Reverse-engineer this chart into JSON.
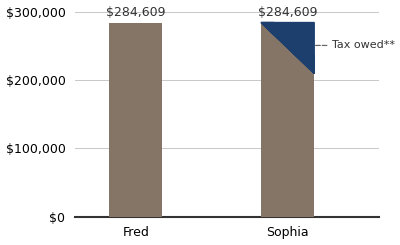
{
  "categories": [
    "Fred",
    "Sophia"
  ],
  "bar_value": 284609,
  "bar_color": "#857566",
  "tax_color": "#1c3f6e",
  "ylim": [
    0,
    300000
  ],
  "yticks": [
    0,
    100000,
    200000,
    300000
  ],
  "ytick_labels": [
    "$0",
    "$100,000",
    "$200,000",
    "$300,000"
  ],
  "bar_label": "$284,609",
  "tax_label": "Tax owed**",
  "bar_width": 0.35,
  "tax_level": 210000,
  "background_color": "#ffffff",
  "grid_color": "#c8c8c8",
  "annotation_fontsize": 9,
  "tick_fontsize": 9,
  "spine_color": "#333333",
  "text_color": "#333333",
  "arrow_color": "#666666"
}
